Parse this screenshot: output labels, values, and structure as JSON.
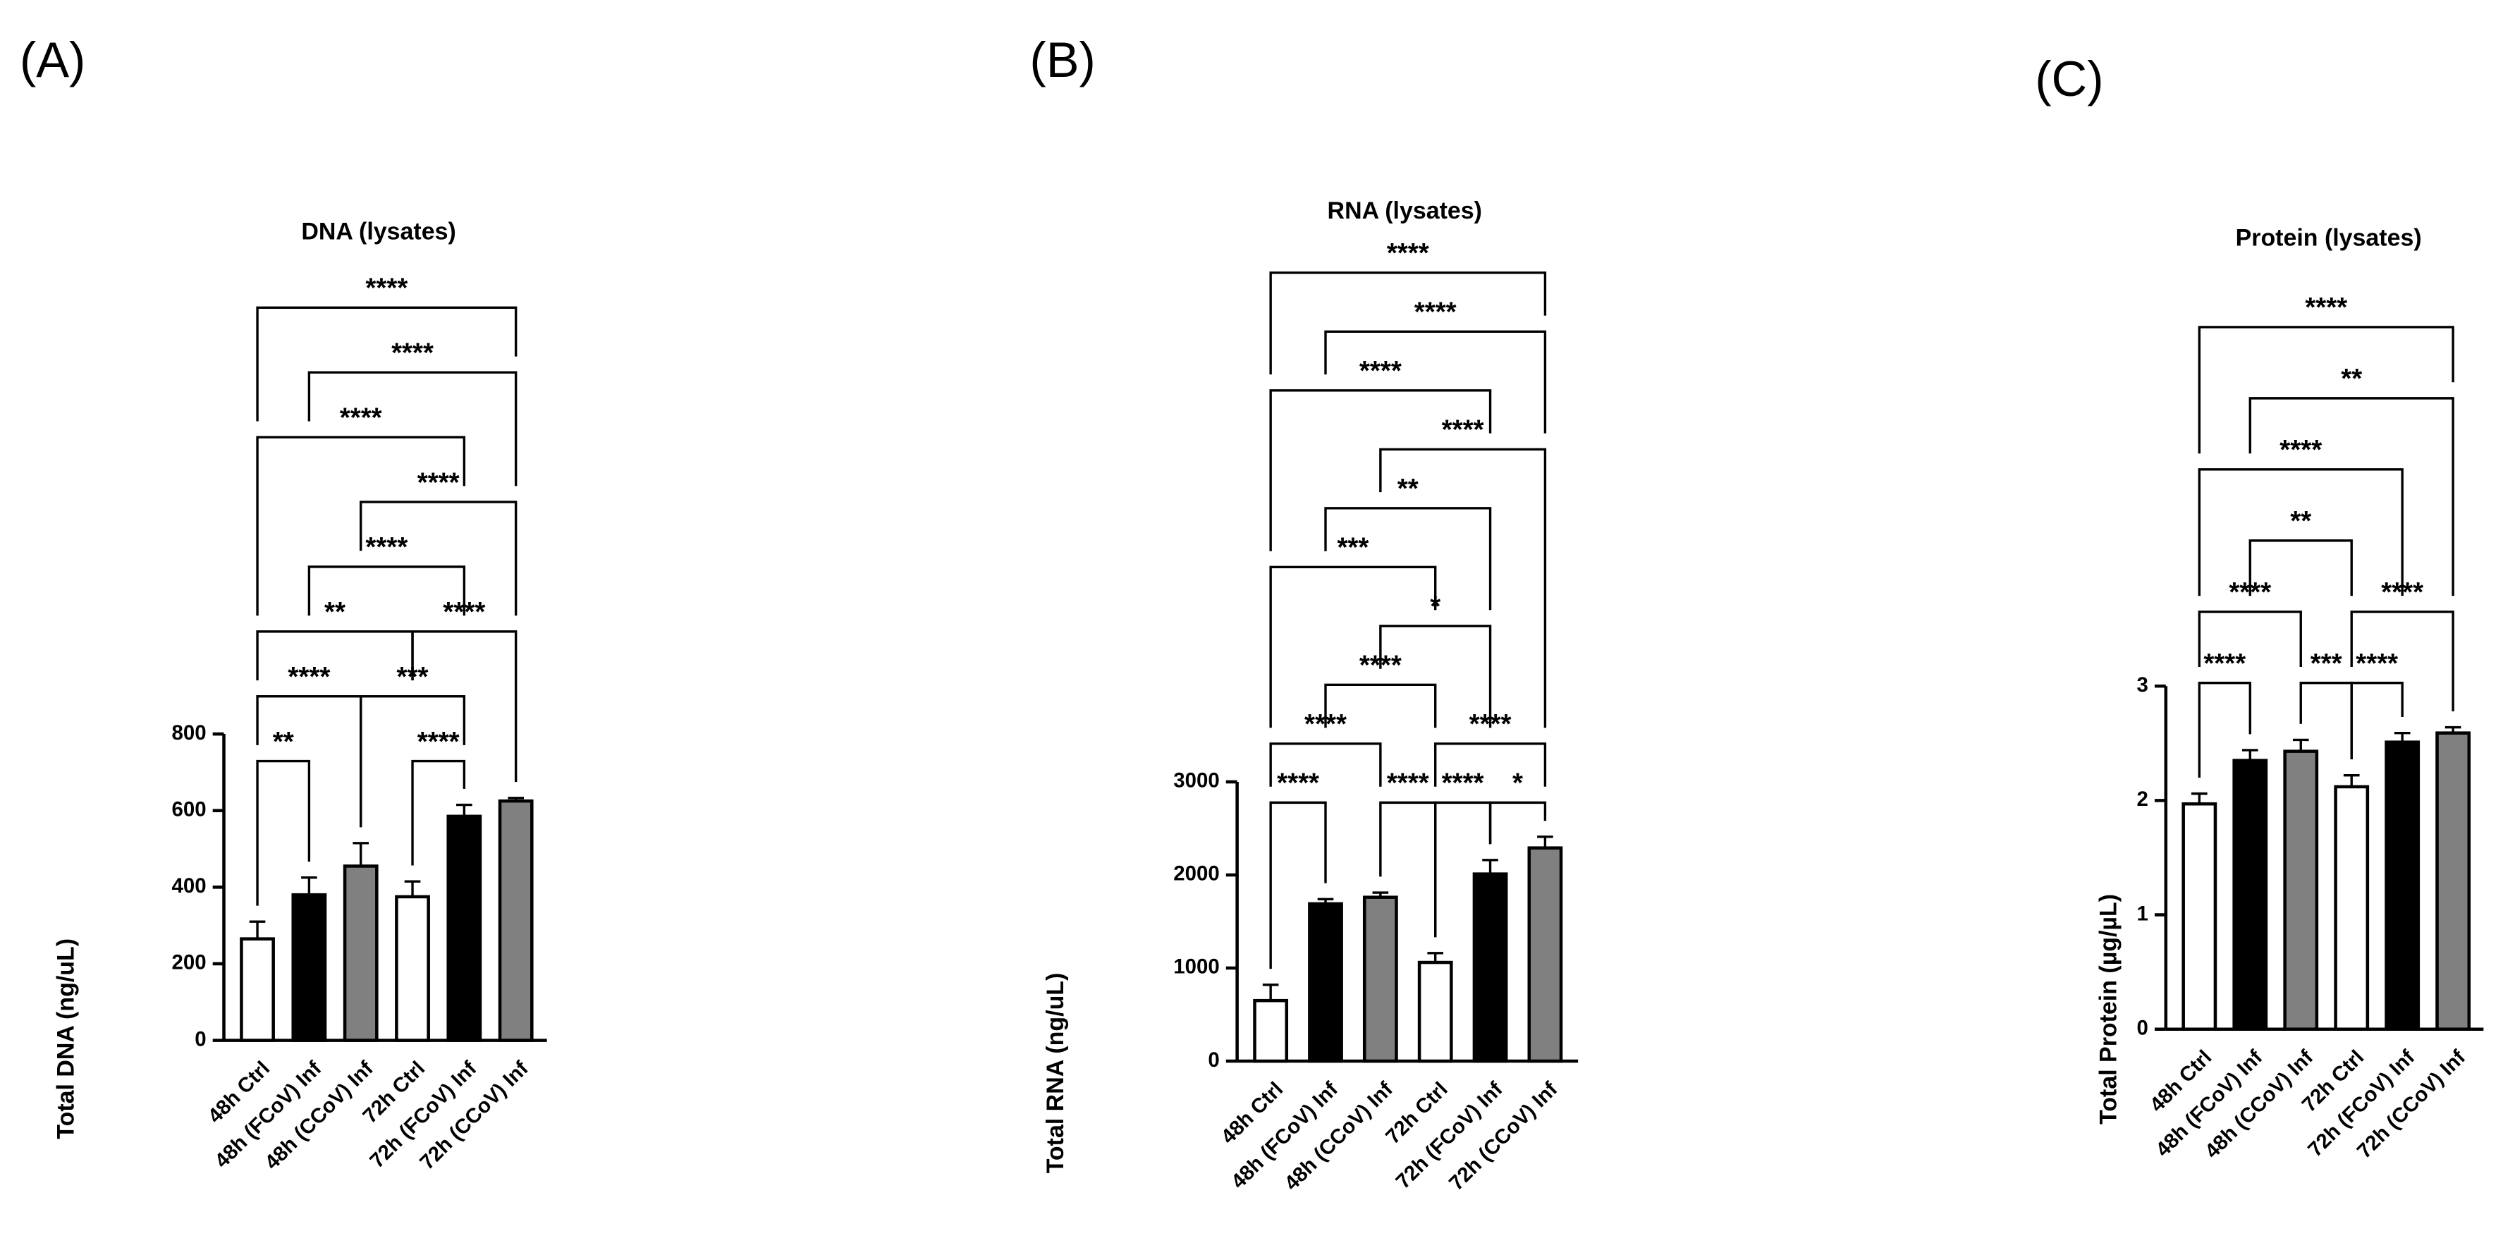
{
  "chart_data": [
    {
      "type": "bar",
      "panel_label": "(A)",
      "title": "DNA (lysates)",
      "y_label": "Total DNA (ng/uL)",
      "categories": [
        "48h Ctrl",
        "48h (FCoV) Inf",
        "48h (CCoV) Inf",
        "72h Ctrl",
        "72h (FCoV) Inf",
        "72h (CCoV) Inf"
      ],
      "values": [
        265,
        380,
        455,
        375,
        585,
        625
      ],
      "errors": [
        45,
        45,
        60,
        40,
        30,
        8
      ],
      "colors": [
        "#ffffff",
        "#000000",
        "#808080",
        "#ffffff",
        "#000000",
        "#808080"
      ],
      "ylim": [
        0,
        800
      ],
      "yticks": [
        0,
        200,
        400,
        600,
        800
      ],
      "comparisons": [
        {
          "from": 0,
          "to": 1,
          "label": "**"
        },
        {
          "from": 3,
          "to": 4,
          "label": "****"
        },
        {
          "from": 0,
          "to": 2,
          "label": "****"
        },
        {
          "from": 2,
          "to": 4,
          "label": "***"
        },
        {
          "from": 0,
          "to": 3,
          "label": "**"
        },
        {
          "from": 3,
          "to": 5,
          "label": "****"
        },
        {
          "from": 1,
          "to": 4,
          "label": "****"
        },
        {
          "from": 2,
          "to": 5,
          "label": "****"
        },
        {
          "from": 0,
          "to": 4,
          "label": "****"
        },
        {
          "from": 1,
          "to": 5,
          "label": "****"
        },
        {
          "from": 0,
          "to": 5,
          "label": "****"
        }
      ]
    },
    {
      "type": "bar",
      "panel_label": "(B)",
      "title": "RNA (lysates)",
      "y_label": "Total RNA (ng/uL)",
      "categories": [
        "48h Ctrl",
        "48h (FCoV) Inf",
        "48h (CCoV) Inf",
        "72h Ctrl",
        "72h (FCoV) Inf",
        "72h (CCoV) Inf"
      ],
      "values": [
        650,
        1690,
        1760,
        1060,
        2010,
        2290
      ],
      "errors": [
        170,
        50,
        50,
        100,
        150,
        120
      ],
      "colors": [
        "#ffffff",
        "#000000",
        "#808080",
        "#ffffff",
        "#000000",
        "#808080"
      ],
      "ylim": [
        0,
        3000
      ],
      "yticks": [
        0,
        1000,
        2000,
        3000
      ],
      "comparisons": [
        {
          "from": 0,
          "to": 1,
          "label": "****"
        },
        {
          "from": 2,
          "to": 3,
          "label": "****"
        },
        {
          "from": 4,
          "to": 5,
          "label": "*"
        },
        {
          "from": 0,
          "to": 2,
          "label": "****"
        },
        {
          "from": 3,
          "to": 4,
          "label": "****"
        },
        {
          "from": 1,
          "to": 3,
          "label": "****"
        },
        {
          "from": 3,
          "to": 5,
          "label": "****"
        },
        {
          "from": 2,
          "to": 4,
          "label": "*"
        },
        {
          "from": 0,
          "to": 3,
          "label": "***"
        },
        {
          "from": 1,
          "to": 4,
          "label": "**"
        },
        {
          "from": 2,
          "to": 5,
          "label": "****"
        },
        {
          "from": 0,
          "to": 4,
          "label": "****"
        },
        {
          "from": 1,
          "to": 5,
          "label": "****"
        },
        {
          "from": 0,
          "to": 5,
          "label": "****"
        }
      ]
    },
    {
      "type": "bar",
      "panel_label": "(C)",
      "title": "Protein (lysates)",
      "y_label": "Total Protein (µg/µL)",
      "categories": [
        "48h Ctrl",
        "48h (FCoV) Inf",
        "48h (CCoV) Inf",
        "72h Ctrl",
        "72h (FCoV) Inf",
        "72h (CCoV) Inf"
      ],
      "values": [
        1.97,
        2.35,
        2.43,
        2.12,
        2.51,
        2.59
      ],
      "errors": [
        0.09,
        0.09,
        0.1,
        0.1,
        0.08,
        0.05
      ],
      "colors": [
        "#ffffff",
        "#000000",
        "#808080",
        "#ffffff",
        "#000000",
        "#808080"
      ],
      "ylim": [
        0,
        3
      ],
      "yticks": [
        0,
        1,
        2,
        3
      ],
      "comparisons": [
        {
          "from": 0,
          "to": 1,
          "label": "****"
        },
        {
          "from": 2,
          "to": 3,
          "label": "***"
        },
        {
          "from": 3,
          "to": 4,
          "label": "****"
        },
        {
          "from": 0,
          "to": 2,
          "label": "****"
        },
        {
          "from": 1,
          "to": 3,
          "label": "**"
        },
        {
          "from": 3,
          "to": 5,
          "label": "****"
        },
        {
          "from": 0,
          "to": 4,
          "label": "****"
        },
        {
          "from": 1,
          "to": 5,
          "label": "**"
        },
        {
          "from": 0,
          "to": 5,
          "label": "****"
        }
      ]
    }
  ]
}
